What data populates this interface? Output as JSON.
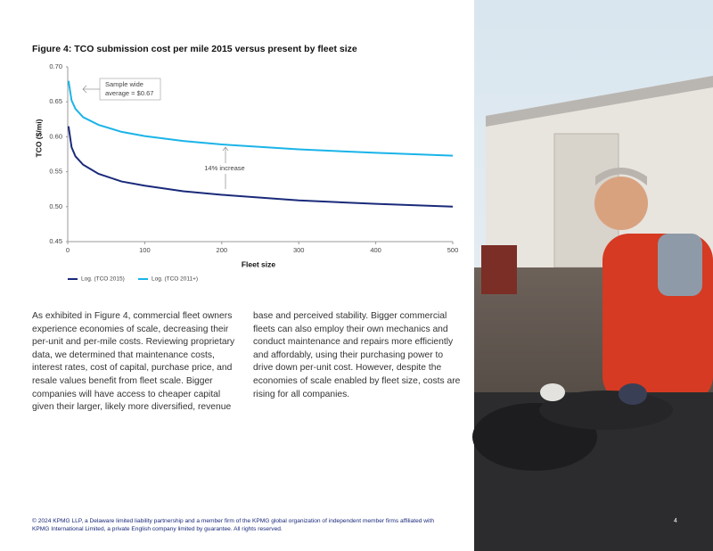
{
  "chart_data": {
    "type": "line",
    "title": "Figure 4: TCO submission cost per mile 2015 versus present by fleet size",
    "xlabel": "Fleet size",
    "ylabel": "TCO ($/mi)",
    "x": [
      1,
      5,
      10,
      20,
      40,
      70,
      100,
      150,
      200,
      300,
      400,
      500
    ],
    "series": [
      {
        "name": "Log. (TCO 2015)",
        "color": "#1a2a7a",
        "values": [
          0.615,
          0.585,
          0.572,
          0.56,
          0.547,
          0.536,
          0.53,
          0.522,
          0.517,
          0.509,
          0.504,
          0.5
        ]
      },
      {
        "name": "Log. (TCO 2011+)",
        "color": "#1ab4e8",
        "values": [
          0.68,
          0.652,
          0.64,
          0.628,
          0.617,
          0.607,
          0.601,
          0.594,
          0.589,
          0.582,
          0.577,
          0.573
        ]
      }
    ],
    "xlim": [
      0,
      500
    ],
    "xticks": [
      0,
      100,
      200,
      300,
      400,
      500
    ],
    "ylim": [
      0.45,
      0.7
    ],
    "yticks": [
      0.45,
      {
        "value": 0.5,
        "label": "0.50"
      },
      0.55,
      {
        "value": 0.6,
        "label": "0.60"
      },
      0.65,
      {
        "value": 0.7,
        "label": "0.70"
      }
    ],
    "legend": "bottom-left",
    "annotations": [
      {
        "lines": [
          "Sample wide",
          "average = $0.67"
        ]
      },
      {
        "lines": [
          "14% increase"
        ]
      }
    ]
  },
  "body": {
    "columns": [
      "As exhibited in Figure 4, commercial fleet owners experience economies of scale, decreasing their per-unit and per-mile costs. Reviewing proprietary data, we determined that maintenance costs, interest rates, cost of capital, purchase price, and resale values benefit from fleet scale. Bigger companies will have access to cheaper capital given their larger, likely more diversified, revenue",
      "base and perceived stability. Bigger commercial fleets can also employ their own mechanics and conduct maintenance and repairs more efficiently and affordably, using their purchasing power to drive down per-unit cost. However, despite the economies of scale enabled by fleet size, costs are rising for all companies."
    ]
  },
  "footer": {
    "text": "© 2024 KPMG LLP, a Delaware limited liability partnership and a member firm of the KPMG global organization of independent member firms affiliated with KPMG International Limited, a private English company limited by guarantee. All rights reserved.",
    "page": "4"
  }
}
